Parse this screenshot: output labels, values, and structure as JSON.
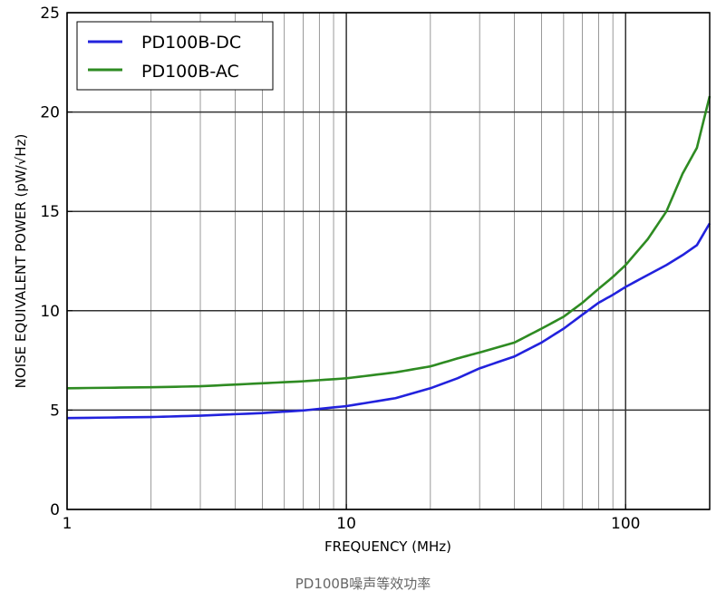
{
  "chart_data": {
    "type": "line",
    "xscale": "log",
    "xlim": [
      1,
      200
    ],
    "ylim": [
      0,
      25
    ],
    "xlabel": "FREQUENCY (MHz)",
    "ylabel": "NOISE EQUIVALENT POWER (pW/√Hz)",
    "x_ticks": [
      1,
      10,
      100
    ],
    "x_tick_labels": [
      "1",
      "10",
      "100"
    ],
    "y_ticks": [
      0,
      5,
      10,
      15,
      20,
      25
    ],
    "y_tick_labels": [
      "0",
      "5",
      "10",
      "15",
      "20",
      "25"
    ],
    "grid": true,
    "legend_position": "top-left",
    "series": [
      {
        "name": "PD100B-DC",
        "color": "#2222dd",
        "x": [
          1,
          2,
          3,
          5,
          7,
          10,
          15,
          20,
          25,
          30,
          40,
          50,
          60,
          70,
          80,
          90,
          100,
          120,
          140,
          160,
          180,
          200
        ],
        "y": [
          4.6,
          4.65,
          4.72,
          4.85,
          4.98,
          5.2,
          5.6,
          6.1,
          6.6,
          7.1,
          7.7,
          8.4,
          9.1,
          9.8,
          10.4,
          10.8,
          11.2,
          11.8,
          12.3,
          12.8,
          13.3,
          14.4
        ]
      },
      {
        "name": "PD100B-AC",
        "color": "#2e8b22",
        "x": [
          1,
          2,
          3,
          5,
          7,
          10,
          15,
          20,
          25,
          30,
          40,
          50,
          60,
          70,
          80,
          90,
          100,
          120,
          140,
          160,
          180,
          200
        ],
        "y": [
          6.1,
          6.15,
          6.2,
          6.35,
          6.45,
          6.6,
          6.9,
          7.2,
          7.6,
          7.9,
          8.4,
          9.1,
          9.7,
          10.4,
          11.1,
          11.7,
          12.3,
          13.6,
          15.0,
          16.9,
          18.2,
          20.8
        ]
      }
    ]
  },
  "caption": "PD100B噪声等效功率"
}
